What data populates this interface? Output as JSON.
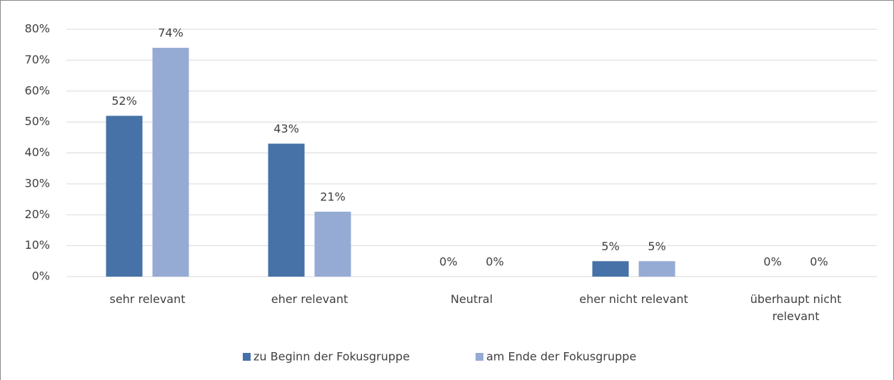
{
  "chart_data": {
    "type": "bar",
    "categories": [
      "sehr relevant",
      "eher relevant",
      "Neutral",
      "eher nicht relevant",
      "überhaupt nicht relevant"
    ],
    "series": [
      {
        "name": "zu Beginn der Fokusgruppe",
        "color": "#4672a7",
        "values": [
          52,
          43,
          0,
          5,
          0
        ],
        "value_labels": [
          "52%",
          "43%",
          "0%",
          "5%",
          "0%"
        ]
      },
      {
        "name": "am Ende der Fokusgruppe",
        "color": "#95abd4",
        "values": [
          74,
          21,
          0,
          5,
          0
        ],
        "value_labels": [
          "74%",
          "21%",
          "0%",
          "5%",
          "0%"
        ]
      }
    ],
    "ylim": [
      0,
      80
    ],
    "yticks": [
      {
        "value": 0,
        "label": "0%"
      },
      {
        "value": 10,
        "label": "10%"
      },
      {
        "value": 20,
        "label": "20%"
      },
      {
        "value": 30,
        "label": "30%"
      },
      {
        "value": 40,
        "label": "40%"
      },
      {
        "value": 50,
        "label": "50%"
      },
      {
        "value": 60,
        "label": "60%"
      },
      {
        "value": 70,
        "label": "70%"
      },
      {
        "value": 80,
        "label": "80%"
      }
    ],
    "grid": true,
    "legend": "bottom"
  }
}
